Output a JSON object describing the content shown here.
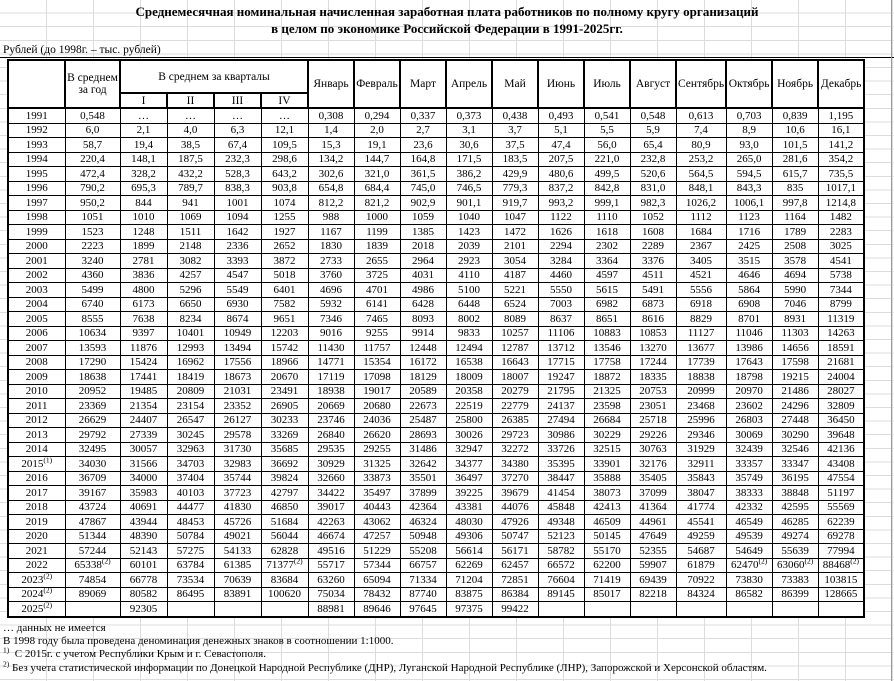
{
  "title": {
    "line1": "Среднемесячная номинальная начисленная заработная плата работников по полному кругу организаций",
    "line2": "в целом по экономике Российской Федерации в 1991-2025гг."
  },
  "units_note": "Рублей (до 1998г. – тыс. рублей)",
  "table": {
    "corner_label": "",
    "avg_year_header": "В среднем за год",
    "quarters_header": "В среднем за кварталы",
    "quarter_cols": [
      "I",
      "II",
      "III",
      "IV"
    ],
    "month_cols": [
      "Январь",
      "Февраль",
      "Март",
      "Апрель",
      "Май",
      "Июнь",
      "Июль",
      "Август",
      "Сентябрь",
      "Октябрь",
      "Ноябрь",
      "Декабрь"
    ],
    "rows": [
      {
        "year": "1991",
        "values": [
          "0,548",
          "…",
          "…",
          "…",
          "…",
          "0,308",
          "0,294",
          "0,337",
          "0,373",
          "0,438",
          "0,493",
          "0,541",
          "0,548",
          "0,613",
          "0,703",
          "0,839",
          "1,195"
        ]
      },
      {
        "year": "1992",
        "values": [
          "6,0",
          "2,1",
          "4,0",
          "6,3",
          "12,1",
          "1,4",
          "2,0",
          "2,7",
          "3,1",
          "3,7",
          "5,1",
          "5,5",
          "5,9",
          "7,4",
          "8,9",
          "10,6",
          "16,1"
        ]
      },
      {
        "year": "1993",
        "values": [
          "58,7",
          "19,4",
          "38,5",
          "67,4",
          "109,5",
          "15,3",
          "19,1",
          "23,6",
          "30,6",
          "37,5",
          "47,4",
          "56,0",
          "65,4",
          "80,9",
          "93,0",
          "101,5",
          "141,2"
        ]
      },
      {
        "year": "1994",
        "values": [
          "220,4",
          "148,1",
          "187,5",
          "232,3",
          "298,6",
          "134,2",
          "144,7",
          "164,8",
          "171,5",
          "183,5",
          "207,5",
          "221,0",
          "232,8",
          "253,2",
          "265,0",
          "281,6",
          "354,2"
        ]
      },
      {
        "year": "1995",
        "values": [
          "472,4",
          "328,2",
          "432,2",
          "528,3",
          "643,2",
          "302,6",
          "321,0",
          "361,5",
          "386,2",
          "429,9",
          "480,6",
          "499,5",
          "520,6",
          "564,5",
          "594,5",
          "615,7",
          "735,5"
        ]
      },
      {
        "year": "1996",
        "values": [
          "790,2",
          "695,3",
          "789,7",
          "838,3",
          "903,8",
          "654,8",
          "684,4",
          "745,0",
          "746,5",
          "779,3",
          "837,2",
          "842,8",
          "831,0",
          "848,1",
          "843,3",
          "835",
          "1017,1"
        ]
      },
      {
        "year": "1997",
        "values": [
          "950,2",
          "844",
          "941",
          "1001",
          "1074",
          "812,2",
          "821,2",
          "902,9",
          "901,1",
          "919,7",
          "993,2",
          "999,1",
          "982,3",
          "1026,2",
          "1006,1",
          "997,8",
          "1214,8"
        ]
      },
      {
        "year": "1998",
        "values": [
          "1051",
          "1010",
          "1069",
          "1094",
          "1255",
          "988",
          "1000",
          "1059",
          "1040",
          "1047",
          "1122",
          "1110",
          "1052",
          "1112",
          "1123",
          "1164",
          "1482"
        ]
      },
      {
        "year": "1999",
        "values": [
          "1523",
          "1248",
          "1511",
          "1642",
          "1927",
          "1167",
          "1199",
          "1385",
          "1423",
          "1472",
          "1626",
          "1618",
          "1608",
          "1684",
          "1716",
          "1789",
          "2283"
        ]
      },
      {
        "year": "2000",
        "values": [
          "2223",
          "1899",
          "2148",
          "2336",
          "2652",
          "1830",
          "1839",
          "2018",
          "2039",
          "2101",
          "2294",
          "2302",
          "2289",
          "2367",
          "2425",
          "2508",
          "3025"
        ]
      },
      {
        "year": "2001",
        "values": [
          "3240",
          "2781",
          "3082",
          "3393",
          "3872",
          "2733",
          "2655",
          "2964",
          "2923",
          "3054",
          "3284",
          "3364",
          "3376",
          "3405",
          "3515",
          "3578",
          "4541"
        ]
      },
      {
        "year": "2002",
        "values": [
          "4360",
          "3836",
          "4257",
          "4547",
          "5018",
          "3760",
          "3725",
          "4031",
          "4110",
          "4187",
          "4460",
          "4597",
          "4511",
          "4521",
          "4646",
          "4694",
          "5738"
        ]
      },
      {
        "year": "2003",
        "values": [
          "5499",
          "4800",
          "5296",
          "5549",
          "6401",
          "4696",
          "4701",
          "4986",
          "5100",
          "5221",
          "5550",
          "5615",
          "5491",
          "5556",
          "5864",
          "5990",
          "7344"
        ]
      },
      {
        "year": "2004",
        "values": [
          "6740",
          "6173",
          "6650",
          "6930",
          "7582",
          "5932",
          "6141",
          "6428",
          "6448",
          "6524",
          "7003",
          "6982",
          "6873",
          "6918",
          "6908",
          "7046",
          "8799"
        ]
      },
      {
        "year": "2005",
        "values": [
          "8555",
          "7638",
          "8234",
          "8674",
          "9651",
          "7346",
          "7465",
          "8093",
          "8002",
          "8089",
          "8637",
          "8651",
          "8616",
          "8829",
          "8701",
          "8931",
          "11319"
        ]
      },
      {
        "year": "2006",
        "values": [
          "10634",
          "9397",
          "10401",
          "10949",
          "12203",
          "9016",
          "9255",
          "9914",
          "9833",
          "10257",
          "11106",
          "10883",
          "10853",
          "11127",
          "11046",
          "11303",
          "14263"
        ]
      },
      {
        "year": "2007",
        "values": [
          "13593",
          "11876",
          "12993",
          "13494",
          "15742",
          "11430",
          "11757",
          "12448",
          "12494",
          "12787",
          "13712",
          "13546",
          "13270",
          "13677",
          "13986",
          "14656",
          "18591"
        ]
      },
      {
        "year": "2008",
        "values": [
          "17290",
          "15424",
          "16962",
          "17556",
          "18966",
          "14771",
          "15354",
          "16172",
          "16538",
          "16643",
          "17715",
          "17758",
          "17244",
          "17739",
          "17643",
          "17598",
          "21681"
        ]
      },
      {
        "year": "2009",
        "values": [
          "18638",
          "17441",
          "18419",
          "18673",
          "20670",
          "17119",
          "17098",
          "18129",
          "18009",
          "18007",
          "19247",
          "18872",
          "18335",
          "18838",
          "18798",
          "19215",
          "24004"
        ]
      },
      {
        "year": "2010",
        "values": [
          "20952",
          "19485",
          "20809",
          "21031",
          "23491",
          "18938",
          "19017",
          "20589",
          "20358",
          "20279",
          "21795",
          "21325",
          "20753",
          "20999",
          "20970",
          "21486",
          "28027"
        ]
      },
      {
        "year": "2011",
        "values": [
          "23369",
          "21354",
          "23154",
          "23352",
          "26905",
          "20669",
          "20680",
          "22673",
          "22519",
          "22779",
          "24137",
          "23598",
          "23051",
          "23468",
          "23602",
          "24296",
          "32809"
        ]
      },
      {
        "year": "2012",
        "values": [
          "26629",
          "24407",
          "26547",
          "26127",
          "30233",
          "23746",
          "24036",
          "25487",
          "25800",
          "26385",
          "27494",
          "26684",
          "25718",
          "25996",
          "26803",
          "27448",
          "36450"
        ]
      },
      {
        "year": "2013",
        "values": [
          "29792",
          "27339",
          "30245",
          "29578",
          "33269",
          "26840",
          "26620",
          "28693",
          "30026",
          "29723",
          "30986",
          "30229",
          "29226",
          "29346",
          "30069",
          "30290",
          "39648"
        ]
      },
      {
        "year": "2014",
        "values": [
          "32495",
          "30057",
          "32963",
          "31730",
          "35685",
          "29535",
          "29255",
          "31486",
          "32947",
          "32272",
          "33726",
          "32515",
          "30763",
          "31929",
          "32439",
          "32546",
          "42136"
        ]
      },
      {
        "year": "2015(1)",
        "values": [
          "34030",
          "31566",
          "34703",
          "32983",
          "36692",
          "30929",
          "31325",
          "32642",
          "34377",
          "34380",
          "35395",
          "33901",
          "32176",
          "32911",
          "33357",
          "33347",
          "43408"
        ]
      },
      {
        "year": "2016",
        "values": [
          "36709",
          "34000",
          "37404",
          "35744",
          "39824",
          "32660",
          "33873",
          "35501",
          "36497",
          "37270",
          "38447",
          "35888",
          "35405",
          "35843",
          "35749",
          "36195",
          "47554"
        ]
      },
      {
        "year": "2017",
        "values": [
          "39167",
          "35983",
          "40103",
          "37723",
          "42797",
          "34422",
          "35497",
          "37899",
          "39225",
          "39679",
          "41454",
          "38073",
          "37099",
          "38047",
          "38333",
          "38848",
          "51197"
        ]
      },
      {
        "year": "2018",
        "values": [
          "43724",
          "40691",
          "44477",
          "41830",
          "46850",
          "39017",
          "40443",
          "42364",
          "43381",
          "44076",
          "45848",
          "42413",
          "41364",
          "41774",
          "42332",
          "42595",
          "55569"
        ]
      },
      {
        "year": "2019",
        "values": [
          "47867",
          "43944",
          "48453",
          "45726",
          "51684",
          "42263",
          "43062",
          "46324",
          "48030",
          "47926",
          "49348",
          "46509",
          "44961",
          "45541",
          "46549",
          "46285",
          "62239"
        ]
      },
      {
        "year": "2020",
        "values": [
          "51344",
          "48390",
          "50784",
          "49021",
          "56044",
          "46674",
          "47257",
          "50948",
          "49306",
          "50747",
          "52123",
          "50145",
          "47649",
          "49259",
          "49539",
          "49274",
          "69278"
        ]
      },
      {
        "year": "2021",
        "values": [
          "57244",
          "52143",
          "57275",
          "54133",
          "62828",
          "49516",
          "51229",
          "55208",
          "56614",
          "56171",
          "58782",
          "55170",
          "52355",
          "54687",
          "54649",
          "55639",
          "77994"
        ]
      },
      {
        "year": "2022",
        "values": [
          "65338(2)",
          "60101",
          "63784",
          "61385",
          "71377(2)",
          "55717",
          "57344",
          "66757",
          "62269",
          "62457",
          "66572",
          "62200",
          "59907",
          "61879",
          "62470(2)",
          "63060(2)",
          "88468(2)"
        ]
      },
      {
        "year": "2023(2)",
        "values": [
          "74854",
          "66778",
          "73534",
          "70639",
          "83684",
          "63260",
          "65094",
          "71334",
          "71204",
          "72851",
          "76604",
          "71419",
          "69439",
          "70922",
          "73830",
          "73383",
          "103815"
        ]
      },
      {
        "year": "2024(2)",
        "values": [
          "89069",
          "80582",
          "86495",
          "83891",
          "100620",
          "75034",
          "78432",
          "87740",
          "83875",
          "86384",
          "89145",
          "85017",
          "82218",
          "84324",
          "86582",
          "86399",
          "128665"
        ]
      },
      {
        "year": "2025(2)",
        "values": [
          "",
          "92305",
          "",
          "",
          "",
          "88981",
          "89646",
          "97645",
          "97375",
          "99422",
          "",
          "",
          "",
          "",
          "",
          "",
          ""
        ]
      }
    ]
  },
  "footnotes": [
    {
      "marker": "",
      "text": "… данных не имеется"
    },
    {
      "marker": "",
      "text": "В 1998 году была проведена  деноминация денежных знаков в соотношении 1:1000."
    },
    {
      "marker": "1)",
      "text": "С 2015г. с учетом Республики Крым и г. Севастополя."
    },
    {
      "marker": "2)",
      "text": "Без учета статистической информации по Донецкой Народной Республике (ДНР), Луганской Народной Республике (ЛНР), Запорожской и Херсонской областям."
    }
  ]
}
